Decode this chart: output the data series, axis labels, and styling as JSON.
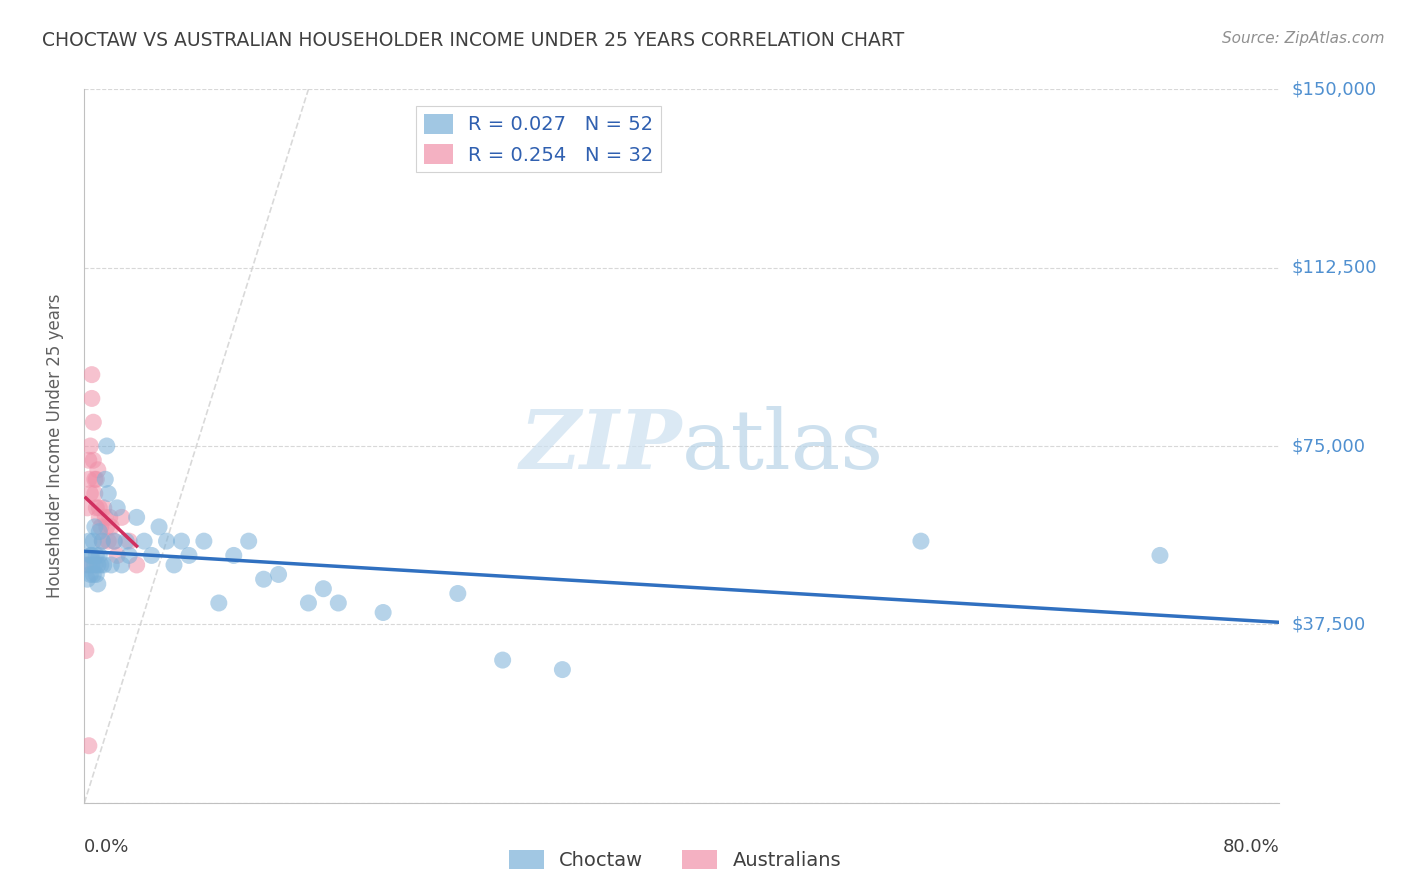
{
  "title": "CHOCTAW VS AUSTRALIAN HOUSEHOLDER INCOME UNDER 25 YEARS CORRELATION CHART",
  "source": "Source: ZipAtlas.com",
  "ylabel": "Householder Income Under 25 years",
  "watermark": "ZIPatlas",
  "xmin": 0.0,
  "xmax": 0.8,
  "ymin": 0,
  "ymax": 150000,
  "yticks": [
    0,
    37500,
    75000,
    112500,
    150000
  ],
  "ytick_labels": [
    "",
    "$37,500",
    "$75,000",
    "$112,500",
    "$150,000"
  ],
  "legend_r_entries": [
    {
      "label": "R = 0.027   N = 52",
      "color": "#a8c4e0"
    },
    {
      "label": "R = 0.254   N = 32",
      "color": "#f4b8c8"
    }
  ],
  "choctaw_color": "#7ab0d8",
  "australians_color": "#f090a8",
  "trend_choctaw_color": "#3070c0",
  "trend_australians_color": "#d03060",
  "diagonal_color": "#d0d0d0",
  "grid_color": "#d8d8d8",
  "bg_color": "#ffffff",
  "title_color": "#404040",
  "source_color": "#909090",
  "axis_label_color": "#606060",
  "right_tick_color": "#5090d0",
  "choctaw_x": [
    0.002,
    0.003,
    0.003,
    0.004,
    0.004,
    0.005,
    0.005,
    0.006,
    0.006,
    0.007,
    0.007,
    0.008,
    0.008,
    0.009,
    0.009,
    0.01,
    0.01,
    0.011,
    0.012,
    0.013,
    0.014,
    0.015,
    0.016,
    0.018,
    0.02,
    0.022,
    0.025,
    0.028,
    0.03,
    0.035,
    0.04,
    0.045,
    0.05,
    0.055,
    0.06,
    0.065,
    0.07,
    0.08,
    0.09,
    0.1,
    0.11,
    0.12,
    0.13,
    0.15,
    0.16,
    0.17,
    0.2,
    0.25,
    0.28,
    0.32,
    0.56,
    0.72
  ],
  "choctaw_y": [
    47000,
    50000,
    55000,
    52000,
    48000,
    50000,
    52000,
    48000,
    55000,
    50000,
    58000,
    48000,
    52000,
    46000,
    50000,
    52000,
    57000,
    50000,
    55000,
    50000,
    68000,
    75000,
    65000,
    50000,
    55000,
    62000,
    50000,
    55000,
    52000,
    60000,
    55000,
    52000,
    58000,
    55000,
    50000,
    55000,
    52000,
    55000,
    42000,
    52000,
    55000,
    47000,
    48000,
    42000,
    45000,
    42000,
    40000,
    44000,
    30000,
    28000,
    55000,
    52000
  ],
  "australians_x": [
    0.001,
    0.002,
    0.003,
    0.003,
    0.004,
    0.004,
    0.005,
    0.005,
    0.006,
    0.006,
    0.007,
    0.007,
    0.008,
    0.008,
    0.009,
    0.01,
    0.01,
    0.011,
    0.012,
    0.013,
    0.014,
    0.015,
    0.016,
    0.017,
    0.018,
    0.02,
    0.022,
    0.025,
    0.03,
    0.035,
    0.001,
    0.003
  ],
  "australians_y": [
    50000,
    62000,
    68000,
    72000,
    65000,
    75000,
    85000,
    90000,
    80000,
    72000,
    68000,
    65000,
    62000,
    68000,
    70000,
    62000,
    60000,
    58000,
    55000,
    62000,
    60000,
    58000,
    55000,
    60000,
    58000,
    55000,
    52000,
    60000,
    55000,
    50000,
    32000,
    12000
  ]
}
